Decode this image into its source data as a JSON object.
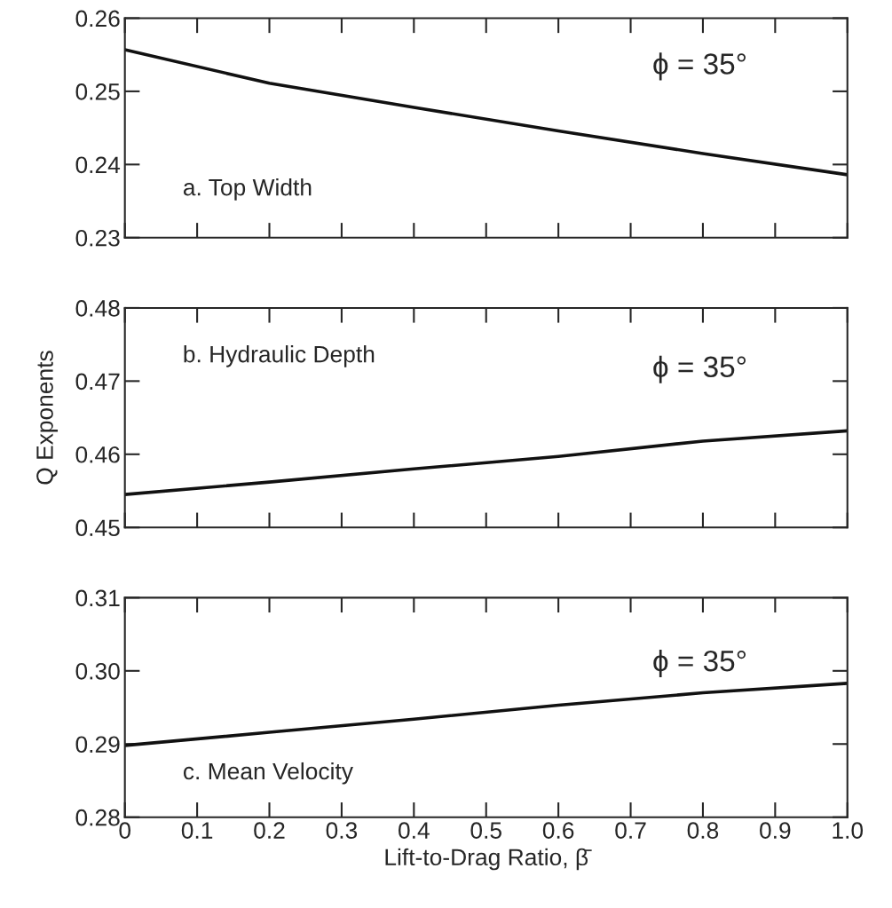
{
  "chart_data": [
    {
      "type": "line",
      "x": [
        0,
        0.2,
        0.4,
        0.6,
        0.8,
        1.0
      ],
      "series": [
        {
          "color": "#111111",
          "values": [
            0.2557,
            0.2511,
            0.2478,
            0.2446,
            0.2415,
            0.2386
          ]
        }
      ],
      "xlim": [
        0,
        1.0
      ],
      "xticks": [
        {
          "value": 0,
          "label": null
        },
        {
          "value": 0.1,
          "label": null
        },
        {
          "value": 0.2,
          "label": null
        },
        {
          "value": 0.3,
          "label": null
        },
        {
          "value": 0.4,
          "label": null
        },
        {
          "value": 0.5,
          "label": null
        },
        {
          "value": 0.6,
          "label": null
        },
        {
          "value": 0.7,
          "label": null
        },
        {
          "value": 0.8,
          "label": null
        },
        {
          "value": 0.9,
          "label": null
        },
        {
          "value": 1.0,
          "label": null
        }
      ],
      "ylim": [
        0.23,
        0.26
      ],
      "yticks": [
        0.23,
        0.24,
        0.25,
        0.26
      ],
      "tick_labels": "y",
      "grid": false,
      "annotations": [
        "a. Top Width",
        "ϕ = 35°"
      ]
    },
    {
      "type": "line",
      "x": [
        0,
        0.2,
        0.4,
        0.6,
        0.8,
        1.0
      ],
      "series": [
        {
          "color": "#111111",
          "values": [
            0.4545,
            0.4562,
            0.458,
            0.4597,
            0.4618,
            0.4632
          ]
        }
      ],
      "xlim": [
        0,
        1.0
      ],
      "xticks": [
        {
          "value": 0,
          "label": null
        },
        {
          "value": 0.1,
          "label": null
        },
        {
          "value": 0.2,
          "label": null
        },
        {
          "value": 0.3,
          "label": null
        },
        {
          "value": 0.4,
          "label": null
        },
        {
          "value": 0.5,
          "label": null
        },
        {
          "value": 0.6,
          "label": null
        },
        {
          "value": 0.7,
          "label": null
        },
        {
          "value": 0.8,
          "label": null
        },
        {
          "value": 0.9,
          "label": null
        },
        {
          "value": 1.0,
          "label": null
        }
      ],
      "ylim": [
        0.45,
        0.48
      ],
      "yticks": [
        0.45,
        0.46,
        0.47,
        0.48
      ],
      "tick_labels": "y",
      "grid": false,
      "ylabel": "Q Exponents",
      "annotations": [
        "b. Hydraulic Depth",
        "ϕ = 35°"
      ]
    },
    {
      "type": "line",
      "x": [
        0,
        0.2,
        0.4,
        0.6,
        0.8,
        1.0
      ],
      "series": [
        {
          "color": "#111111",
          "values": [
            0.2898,
            0.2916,
            0.2934,
            0.2953,
            0.297,
            0.2983
          ]
        }
      ],
      "xlim": [
        0,
        1.0
      ],
      "xticks": [
        {
          "value": 0,
          "label": "0"
        },
        0.1,
        0.2,
        0.3,
        0.4,
        0.5,
        0.6,
        0.7,
        0.8,
        0.9,
        {
          "value": 1.0,
          "label": "1.0"
        }
      ],
      "ylim": [
        0.28,
        0.31
      ],
      "yticks": [
        0.28,
        0.29,
        {
          "value": 0.3,
          "label": "0.30"
        },
        0.31
      ],
      "grid": false,
      "xlabel": "Lift-to-Drag Ratio, β̄",
      "annotations": [
        "c. Mean Velocity",
        "ϕ = 35°"
      ]
    }
  ]
}
